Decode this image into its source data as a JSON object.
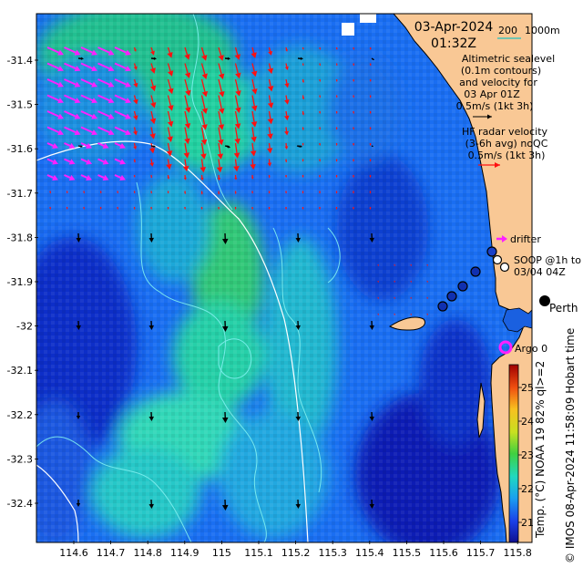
{
  "map": {
    "date": "03-Apr-2024",
    "time": "01:32Z",
    "scale_label": "200",
    "depth_label": "1000m",
    "altimetry_note": [
      "Altimetric sealevel",
      "(0.1m contours)",
      "and velocity for",
      "03 Apr 01Z"
    ],
    "altimetry_scale": "0.5m/s (1kt 3h)",
    "hf_note": [
      "HF radar velocity",
      "(3-6h avg) noQC"
    ],
    "hf_scale": "0.5m/s (1kt 3h)",
    "drifter_label": "drifter",
    "soop_label": [
      "SOOP @1h to",
      "03/04 04Z"
    ],
    "perth_label": "Perth",
    "argo_label": "Argo 0",
    "credit": "© IMOS 08-Apr-2024 11:58:09 Hobart time",
    "colorbar_title": "Temp. (°C) NOAA 19 82% ql>=2"
  },
  "axes": {
    "lat_labels": [
      "-31.4",
      "-31.5",
      "-31.6",
      "-31.7",
      "-31.8",
      "-31.9",
      "-32",
      "-32.1",
      "-32.2",
      "-32.3",
      "-32.4"
    ],
    "lon_labels": [
      "114.6",
      "114.7",
      "114.8",
      "114.9",
      "115",
      "115.1",
      "115.2",
      "115.3",
      "115.4",
      "115.5",
      "115.6",
      "115.7",
      "115.8"
    ],
    "colorbar_ticks": [
      "21",
      "22",
      "23",
      "24",
      "25"
    ]
  },
  "colors": {
    "land": "#f9c895",
    "hf_arrow": "#ff1010",
    "drifter": "#ff20ff",
    "cool_sst": "#1040e0",
    "warm_sst": "#20c8a0",
    "contour": "#7ff0f0"
  }
}
